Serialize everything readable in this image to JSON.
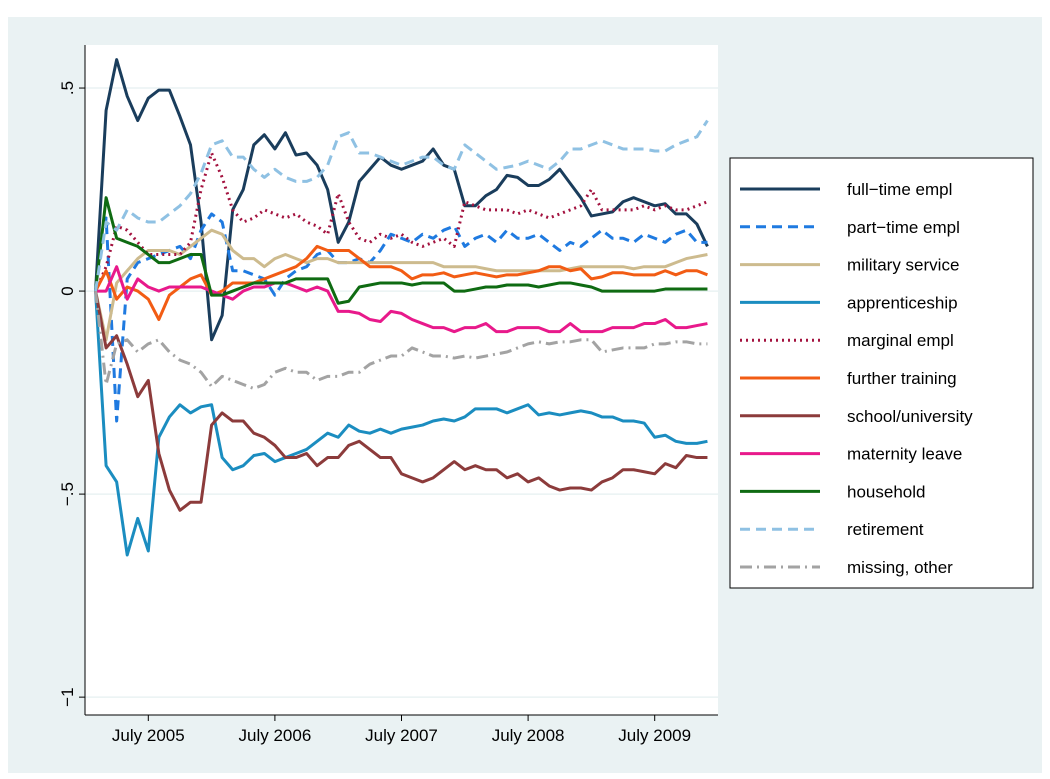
{
  "chart_data": {
    "type": "line",
    "x": [
      "2005-02",
      "2005-03",
      "2005-04",
      "2005-05",
      "2005-06",
      "2005-07",
      "2005-08",
      "2005-09",
      "2005-10",
      "2005-11",
      "2005-12",
      "2006-01",
      "2006-02",
      "2006-03",
      "2006-04",
      "2006-05",
      "2006-06",
      "2006-07",
      "2006-08",
      "2006-09",
      "2006-10",
      "2006-11",
      "2006-12",
      "2007-01",
      "2007-02",
      "2007-03",
      "2007-04",
      "2007-05",
      "2007-06",
      "2007-07",
      "2007-08",
      "2007-09",
      "2007-10",
      "2007-11",
      "2007-12",
      "2008-01",
      "2008-02",
      "2008-03",
      "2008-04",
      "2008-05",
      "2008-06",
      "2008-07",
      "2008-08",
      "2008-09",
      "2008-10",
      "2008-11",
      "2008-12",
      "2009-01",
      "2009-02",
      "2009-03",
      "2009-04",
      "2009-05",
      "2009-06",
      "2009-07",
      "2009-08",
      "2009-09",
      "2009-10",
      "2009-11",
      "2009-12"
    ],
    "xlim": [
      "2005-01",
      "2010-01"
    ],
    "xticks": [
      {
        "value": "2005-07",
        "label": "July 2005"
      },
      {
        "value": "2006-07",
        "label": "July 2006"
      },
      {
        "value": "2007-07",
        "label": "July 2007"
      },
      {
        "value": "2008-07",
        "label": "July 2008"
      },
      {
        "value": "2009-07",
        "label": "July 2009"
      }
    ],
    "ylim": [
      -1.044,
      0.606
    ],
    "yticks": [
      {
        "value": -1,
        "label": "−1"
      },
      {
        "value": -0.5,
        "label": "−.5"
      },
      0,
      {
        "value": 0.5,
        "label": ".5"
      }
    ],
    "grid": true,
    "legend": "right",
    "series": [
      {
        "name": "full−time empl",
        "color": "#1a3d5c",
        "dash": "solid",
        "values": [
          0,
          0.445,
          0.57,
          0.48,
          0.42,
          0.475,
          0.495,
          0.495,
          0.43,
          0.36,
          0.17,
          -0.12,
          -0.06,
          0.2,
          0.25,
          0.36,
          0.385,
          0.35,
          0.39,
          0.335,
          0.34,
          0.31,
          0.25,
          0.12,
          0.17,
          0.27,
          0.3,
          0.33,
          0.31,
          0.3,
          0.31,
          0.32,
          0.35,
          0.31,
          0.3,
          0.21,
          0.21,
          0.235,
          0.25,
          0.285,
          0.28,
          0.26,
          0.26,
          0.275,
          0.3,
          0.265,
          0.23,
          0.185,
          0.19,
          0.195,
          0.22,
          0.23,
          0.22,
          0.21,
          0.215,
          0.19,
          0.19,
          0.165,
          0.11
        ]
      },
      {
        "name": "part−time empl",
        "color": "#1f7ae0",
        "dash": "dash",
        "values": [
          0,
          0.18,
          -0.32,
          0.03,
          0.07,
          0.08,
          0.09,
          0.1,
          0.11,
          0.08,
          0.15,
          0.19,
          0.17,
          0.05,
          0.05,
          0.04,
          0.03,
          -0.01,
          0.03,
          0.05,
          0.06,
          0.09,
          0.1,
          0.07,
          0.07,
          0.08,
          0.07,
          0.1,
          0.14,
          0.13,
          0.12,
          0.14,
          0.13,
          0.15,
          0.16,
          0.11,
          0.13,
          0.14,
          0.12,
          0.15,
          0.13,
          0.13,
          0.14,
          0.12,
          0.1,
          0.12,
          0.11,
          0.13,
          0.15,
          0.13,
          0.13,
          0.12,
          0.14,
          0.13,
          0.12,
          0.14,
          0.15,
          0.12,
          0.12
        ]
      },
      {
        "name": "military service",
        "color": "#cdbb8e",
        "dash": "solid",
        "values": [
          0,
          -0.12,
          0.02,
          0.05,
          0.08,
          0.1,
          0.1,
          0.1,
          0.09,
          0.11,
          0.13,
          0.15,
          0.14,
          0.1,
          0.08,
          0.08,
          0.06,
          0.08,
          0.09,
          0.08,
          0.07,
          0.08,
          0.08,
          0.07,
          0.07,
          0.07,
          0.07,
          0.07,
          0.07,
          0.07,
          0.07,
          0.07,
          0.07,
          0.06,
          0.06,
          0.06,
          0.06,
          0.055,
          0.05,
          0.05,
          0.05,
          0.05,
          0.05,
          0.05,
          0.05,
          0.055,
          0.06,
          0.06,
          0.06,
          0.06,
          0.06,
          0.055,
          0.06,
          0.06,
          0.06,
          0.07,
          0.08,
          0.085,
          0.09
        ]
      },
      {
        "name": "apprenticeship",
        "color": "#1b8dc0",
        "dash": "solid",
        "values": [
          0,
          -0.43,
          -0.47,
          -0.65,
          -0.56,
          -0.64,
          -0.36,
          -0.31,
          -0.28,
          -0.3,
          -0.285,
          -0.28,
          -0.41,
          -0.44,
          -0.43,
          -0.405,
          -0.4,
          -0.42,
          -0.41,
          -0.4,
          -0.39,
          -0.37,
          -0.35,
          -0.36,
          -0.33,
          -0.345,
          -0.35,
          -0.34,
          -0.35,
          -0.34,
          -0.335,
          -0.33,
          -0.32,
          -0.315,
          -0.32,
          -0.31,
          -0.29,
          -0.29,
          -0.29,
          -0.3,
          -0.29,
          -0.28,
          -0.305,
          -0.3,
          -0.305,
          -0.3,
          -0.295,
          -0.3,
          -0.31,
          -0.31,
          -0.32,
          -0.32,
          -0.325,
          -0.36,
          -0.355,
          -0.37,
          -0.375,
          -0.375,
          -0.37
        ]
      },
      {
        "name": "marginal empl",
        "color": "#a3123f",
        "dash": "dot",
        "values": [
          0,
          0.06,
          0.16,
          0.15,
          0.12,
          0.09,
          0.09,
          0.09,
          0.09,
          0.12,
          0.25,
          0.34,
          0.28,
          0.2,
          0.17,
          0.18,
          0.2,
          0.19,
          0.18,
          0.19,
          0.17,
          0.16,
          0.14,
          0.24,
          0.17,
          0.13,
          0.12,
          0.14,
          0.13,
          0.14,
          0.12,
          0.11,
          0.12,
          0.13,
          0.11,
          0.22,
          0.21,
          0.2,
          0.2,
          0.2,
          0.19,
          0.2,
          0.19,
          0.18,
          0.19,
          0.2,
          0.21,
          0.25,
          0.2,
          0.2,
          0.2,
          0.2,
          0.21,
          0.2,
          0.21,
          0.2,
          0.2,
          0.21,
          0.22
        ]
      },
      {
        "name": "further training",
        "color": "#f25c14",
        "dash": "solid",
        "values": [
          0,
          0.05,
          -0.02,
          0.01,
          0,
          -0.02,
          -0.07,
          -0.01,
          0.01,
          0.03,
          0.04,
          -0.01,
          0,
          0.02,
          0.02,
          0.02,
          0.03,
          0.04,
          0.05,
          0.06,
          0.08,
          0.11,
          0.1,
          0.1,
          0.1,
          0.08,
          0.06,
          0.06,
          0.06,
          0.05,
          0.03,
          0.04,
          0.04,
          0.045,
          0.035,
          0.04,
          0.045,
          0.04,
          0.035,
          0.04,
          0.04,
          0.045,
          0.05,
          0.06,
          0.06,
          0.05,
          0.055,
          0.03,
          0.035,
          0.045,
          0.045,
          0.04,
          0.04,
          0.04,
          0.05,
          0.04,
          0.05,
          0.05,
          0.04
        ]
      },
      {
        "name": "school/university",
        "color": "#8c3b3b",
        "dash": "solid",
        "values": [
          0,
          -0.14,
          -0.11,
          -0.18,
          -0.26,
          -0.22,
          -0.4,
          -0.49,
          -0.54,
          -0.52,
          -0.52,
          -0.33,
          -0.3,
          -0.32,
          -0.32,
          -0.35,
          -0.36,
          -0.38,
          -0.41,
          -0.41,
          -0.4,
          -0.43,
          -0.41,
          -0.41,
          -0.38,
          -0.37,
          -0.39,
          -0.41,
          -0.41,
          -0.45,
          -0.46,
          -0.47,
          -0.46,
          -0.44,
          -0.42,
          -0.44,
          -0.43,
          -0.44,
          -0.44,
          -0.46,
          -0.45,
          -0.47,
          -0.46,
          -0.48,
          -0.49,
          -0.485,
          -0.485,
          -0.49,
          -0.47,
          -0.46,
          -0.44,
          -0.44,
          -0.445,
          -0.45,
          -0.425,
          -0.435,
          -0.405,
          -0.41,
          -0.41
        ]
      },
      {
        "name": "maternity leave",
        "color": "#e8198b",
        "dash": "solid",
        "values": [
          0,
          0,
          0.06,
          -0.02,
          0.03,
          0.01,
          0,
          0.01,
          0.01,
          0.01,
          0.01,
          0,
          -0.01,
          -0.02,
          0,
          0.01,
          0.01,
          0.02,
          0.02,
          0.01,
          0,
          0.01,
          0,
          -0.05,
          -0.05,
          -0.055,
          -0.07,
          -0.075,
          -0.05,
          -0.055,
          -0.07,
          -0.08,
          -0.09,
          -0.09,
          -0.1,
          -0.09,
          -0.09,
          -0.08,
          -0.1,
          -0.1,
          -0.09,
          -0.09,
          -0.09,
          -0.1,
          -0.1,
          -0.08,
          -0.1,
          -0.1,
          -0.1,
          -0.09,
          -0.09,
          -0.09,
          -0.08,
          -0.08,
          -0.07,
          -0.09,
          -0.09,
          -0.085,
          -0.08
        ]
      },
      {
        "name": "household",
        "color": "#0f6b12",
        "dash": "solid",
        "values": [
          0,
          0.23,
          0.13,
          0.12,
          0.11,
          0.09,
          0.07,
          0.07,
          0.08,
          0.09,
          0.09,
          -0.01,
          -0.01,
          0,
          0.01,
          0.02,
          0.02,
          0.02,
          0.02,
          0.03,
          0.03,
          0.03,
          0.03,
          -0.03,
          -0.025,
          0.01,
          0.015,
          0.02,
          0.02,
          0.02,
          0.015,
          0.02,
          0.02,
          0.02,
          0,
          0,
          0.005,
          0.01,
          0.01,
          0.015,
          0.015,
          0.015,
          0.01,
          0.015,
          0.02,
          0.02,
          0.015,
          0.01,
          0,
          0,
          0,
          0,
          0,
          0,
          0.005,
          0.005,
          0.005,
          0.005,
          0.005
        ]
      },
      {
        "name": "retirement",
        "color": "#8fc1e3",
        "dash": "dash",
        "values": [
          0,
          0.17,
          0.15,
          0.2,
          0.18,
          0.17,
          0.17,
          0.19,
          0.21,
          0.24,
          0.29,
          0.36,
          0.37,
          0.33,
          0.33,
          0.3,
          0.28,
          0.3,
          0.28,
          0.27,
          0.27,
          0.28,
          0.31,
          0.38,
          0.39,
          0.34,
          0.34,
          0.33,
          0.32,
          0.31,
          0.32,
          0.33,
          0.33,
          0.31,
          0.3,
          0.36,
          0.34,
          0.32,
          0.3,
          0.305,
          0.31,
          0.32,
          0.31,
          0.3,
          0.32,
          0.35,
          0.35,
          0.36,
          0.37,
          0.36,
          0.35,
          0.35,
          0.35,
          0.345,
          0.345,
          0.36,
          0.37,
          0.38,
          0.42
        ]
      },
      {
        "name": "missing, other",
        "color": "#a3a3a3",
        "dash": "dashdot",
        "values": [
          0,
          -0.23,
          -0.13,
          -0.12,
          -0.15,
          -0.13,
          -0.12,
          -0.15,
          -0.17,
          -0.18,
          -0.2,
          -0.235,
          -0.21,
          -0.22,
          -0.23,
          -0.24,
          -0.23,
          -0.2,
          -0.19,
          -0.2,
          -0.2,
          -0.22,
          -0.21,
          -0.21,
          -0.2,
          -0.2,
          -0.18,
          -0.17,
          -0.16,
          -0.16,
          -0.14,
          -0.15,
          -0.16,
          -0.16,
          -0.165,
          -0.16,
          -0.165,
          -0.16,
          -0.155,
          -0.15,
          -0.14,
          -0.13,
          -0.125,
          -0.13,
          -0.125,
          -0.125,
          -0.12,
          -0.12,
          -0.15,
          -0.145,
          -0.14,
          -0.14,
          -0.14,
          -0.13,
          -0.13,
          -0.125,
          -0.125,
          -0.13,
          -0.13
        ]
      }
    ]
  }
}
